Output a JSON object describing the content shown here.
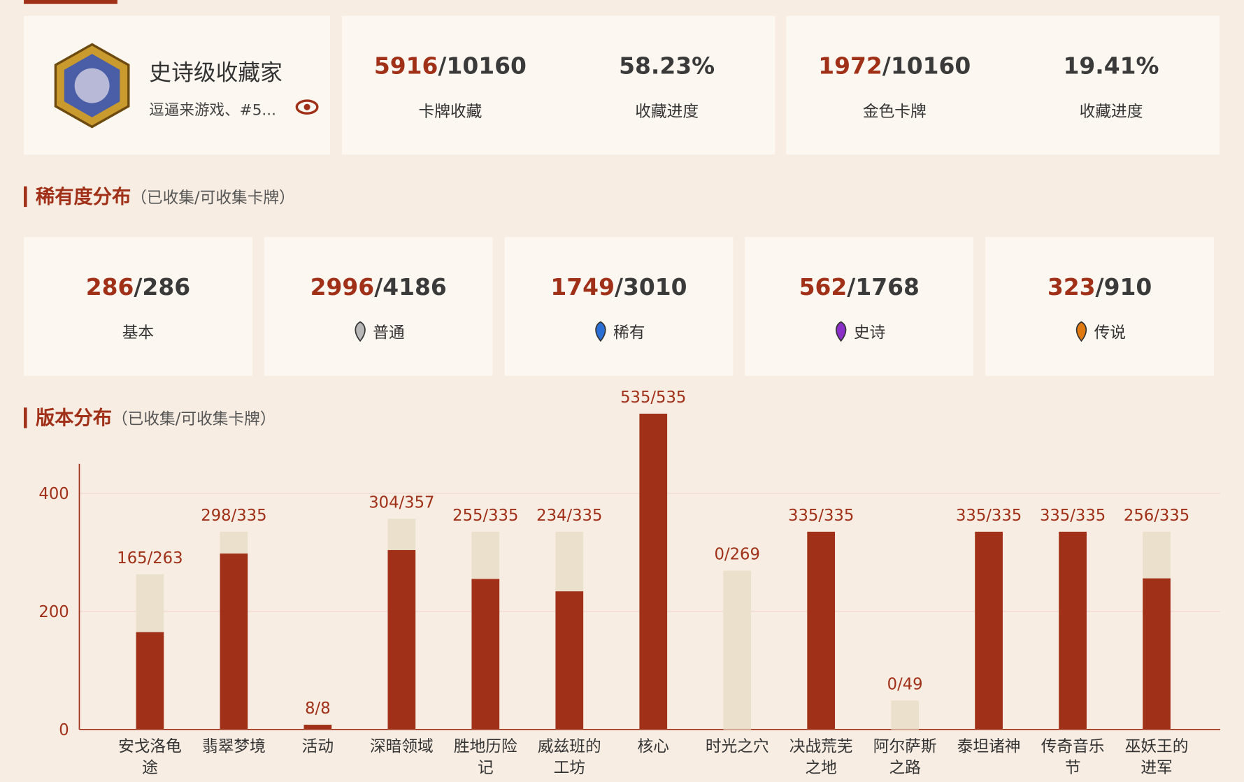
{
  "profile": {
    "name": "史诗级收藏家",
    "subtitle": "逗逼来游戏、#5..."
  },
  "stats": [
    {
      "collected": 5916,
      "total": 10160,
      "label": "卡牌收藏",
      "percent": "58.23%",
      "percent_label": "收藏进度"
    },
    {
      "collected": 1972,
      "total": 10160,
      "label": "金色卡牌",
      "percent": "19.41%",
      "percent_label": "收藏进度"
    }
  ],
  "rarity": {
    "title": "稀有度分布",
    "note": "（已收集/可收集卡牌）",
    "items": [
      {
        "collected": 286,
        "total": 286,
        "label": "基本",
        "gem": null
      },
      {
        "collected": 2996,
        "total": 4186,
        "label": "普通",
        "gem": "#b8b8b8"
      },
      {
        "collected": 1749,
        "total": 3010,
        "label": "稀有",
        "gem": "#2a6fd6"
      },
      {
        "collected": 562,
        "total": 1768,
        "label": "史诗",
        "gem": "#8a2fc8"
      },
      {
        "collected": 323,
        "total": 910,
        "label": "传说",
        "gem": "#e07a10"
      }
    ]
  },
  "chart_data": {
    "type": "bar",
    "title": "版本分布",
    "note": "（已收集/可收集卡牌）",
    "categories": [
      "安戈洛龟途",
      "翡翠梦境",
      "活动",
      "深暗领域",
      "胜地历险记",
      "威兹班的工坊",
      "核心",
      "时光之穴",
      "决战荒芜之地",
      "阿尔萨斯之路",
      "泰坦诸神",
      "传奇音乐节",
      "巫妖王的进军"
    ],
    "series": [
      {
        "name": "已收集",
        "color": "#a03018",
        "values": [
          165,
          298,
          8,
          304,
          255,
          234,
          535,
          0,
          335,
          0,
          335,
          335,
          256
        ]
      },
      {
        "name": "可收集",
        "color": "#ebe0cc",
        "values": [
          263,
          335,
          8,
          357,
          335,
          335,
          535,
          269,
          335,
          49,
          335,
          335,
          335
        ]
      }
    ],
    "value_labels": [
      "165/263",
      "298/335",
      "8/8",
      "304/357",
      "255/335",
      "234/335",
      "535/535",
      "0/269",
      "335/335",
      "0/49",
      "335/335",
      "335/335",
      "256/335"
    ],
    "ylim": [
      0,
      450
    ],
    "yticks": [
      0,
      200,
      400
    ],
    "grid": true
  }
}
